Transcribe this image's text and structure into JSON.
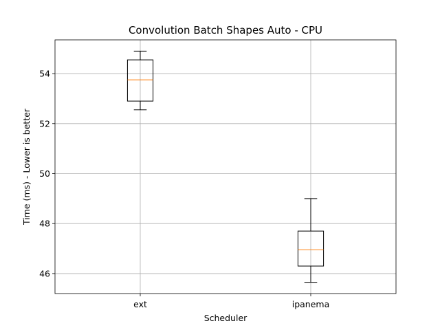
{
  "chart_data": {
    "type": "box",
    "title": "Convolution Batch Shapes Auto - CPU",
    "xlabel": "Scheduler",
    "ylabel": "Time (ms) - Lower is better",
    "categories": [
      "ext",
      "ipanema"
    ],
    "boxes": [
      {
        "name": "ext",
        "whisker_low": 52.55,
        "q1": 52.9,
        "median": 53.75,
        "q3": 54.55,
        "whisker_high": 54.9
      },
      {
        "name": "ipanema",
        "whisker_low": 45.65,
        "q1": 46.3,
        "median": 46.95,
        "q3": 47.7,
        "whisker_high": 49.0
      }
    ],
    "ylim": [
      45.2,
      55.35
    ],
    "yticks": [
      46,
      48,
      50,
      52,
      54
    ],
    "ytick_labels": [
      "46",
      "48",
      "50",
      "52",
      "54"
    ],
    "grid": true,
    "colors": {
      "box": "#000000",
      "median": "#ff7f0e",
      "grid": "#b0b0b0"
    }
  }
}
